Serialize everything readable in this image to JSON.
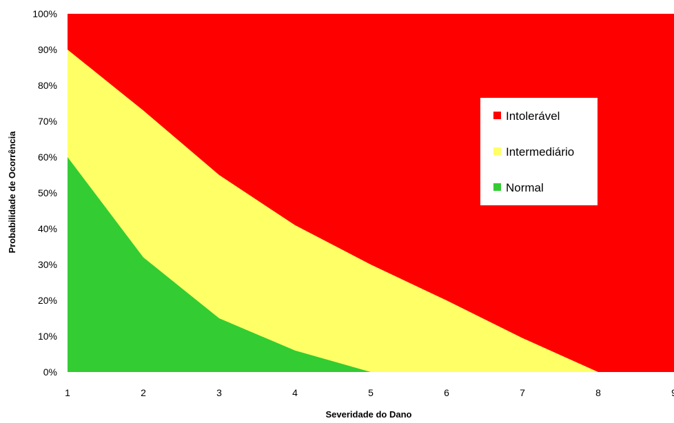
{
  "chart_data": {
    "type": "area",
    "title": "",
    "xlabel": "Severidade do Dano",
    "ylabel": "Probabilidade de Ocorrência",
    "x_ticks": [
      "1",
      "2",
      "3",
      "4",
      "5",
      "6",
      "7",
      "8",
      "9"
    ],
    "y_ticks": [
      "0%",
      "10%",
      "20%",
      "30%",
      "40%",
      "50%",
      "60%",
      "70%",
      "80%",
      "90%",
      "100%"
    ],
    "xlim": [
      1,
      9
    ],
    "ylim": [
      0,
      100
    ],
    "grid": false,
    "legend_position": "right",
    "x": [
      1,
      2,
      3,
      4,
      5,
      6,
      7,
      8,
      9
    ],
    "series": [
      {
        "name": "Intolerável",
        "color": "#ff0000",
        "upper": [
          100,
          100,
          100,
          100,
          100,
          100,
          100,
          100,
          100
        ]
      },
      {
        "name": "Intermediário",
        "color": "#ffff66",
        "upper": [
          90,
          73,
          55,
          41,
          30,
          20,
          9.5,
          0,
          0
        ]
      },
      {
        "name": "Normal",
        "color": "#33cc33",
        "upper": [
          60,
          32,
          15,
          6,
          0,
          0,
          0,
          0,
          0
        ]
      }
    ]
  }
}
